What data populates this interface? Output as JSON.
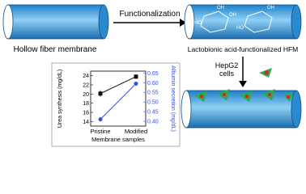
{
  "labels": {
    "hollow": "Hollow fiber membrane",
    "step": "Functionalization",
    "functionalized": "Lactobionic acid-functionalized HFM",
    "cells": "HepG2\ncells"
  },
  "sugar_groups": [
    "OH",
    "OH",
    "HO",
    "HO",
    "OH"
  ],
  "chart_data": {
    "type": "line",
    "categories": [
      "Pristine",
      "Modified"
    ],
    "xlabel": "Membrane samples",
    "ylabel": "Urea synthesis (mg/dL)",
    "y2label": "Albumin secretion (mg/dL)",
    "ylim": [
      13,
      25
    ],
    "yticks": [
      14,
      16,
      18,
      20,
      22,
      24
    ],
    "y2lim": [
      0.375,
      0.66
    ],
    "y2ticks": [
      0.4,
      0.45,
      0.5,
      0.55,
      0.6,
      0.65
    ],
    "series": [
      {
        "color": "#111111",
        "marker": "square",
        "values": [
          20.1,
          23.8
        ],
        "errors": [
          0.7,
          0.5
        ]
      },
      {
        "color": "#3050e0",
        "marker": "circle",
        "axis": "y2",
        "values": [
          0.41,
          0.595
        ],
        "errors": [
          0.012,
          0.01
        ]
      }
    ]
  }
}
